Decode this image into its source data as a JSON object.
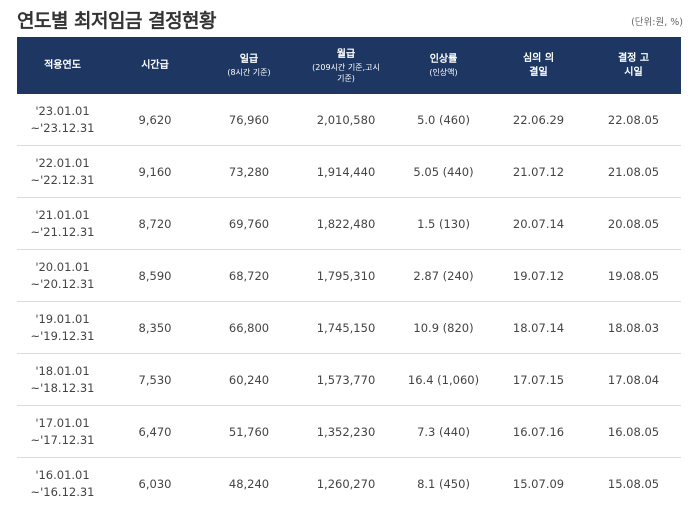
{
  "header": {
    "title": "연도별 최저임금 결정현황",
    "unit": "(단위:원, %)"
  },
  "table": {
    "columns": [
      {
        "label": "적용연도"
      },
      {
        "label": "시간급"
      },
      {
        "label": "일급",
        "sub": "(8시간 기준)"
      },
      {
        "label": "월급",
        "sub": "(209시간 기준,고시기준)"
      },
      {
        "label": "인상률",
        "sub": "(인상액)"
      },
      {
        "label": "심의 의결일"
      },
      {
        "label": "결정 고시일"
      }
    ],
    "rows": [
      {
        "from": "'23.01.01",
        "to": "~'23.12.31",
        "hourly": "9,620",
        "daily": "76,960",
        "monthly": "2,010,580",
        "rate": "5.0 (460)",
        "deliberation": "22.06.29",
        "notice": "22.08.05"
      },
      {
        "from": "'22.01.01",
        "to": "~'22.12.31",
        "hourly": "9,160",
        "daily": "73,280",
        "monthly": "1,914,440",
        "rate": "5.05 (440)",
        "deliberation": "21.07.12",
        "notice": "21.08.05"
      },
      {
        "from": "'21.01.01",
        "to": "~'21.12.31",
        "hourly": "8,720",
        "daily": "69,760",
        "monthly": "1,822,480",
        "rate": "1.5 (130)",
        "deliberation": "20.07.14",
        "notice": "20.08.05"
      },
      {
        "from": "'20.01.01",
        "to": "~'20.12.31",
        "hourly": "8,590",
        "daily": "68,720",
        "monthly": "1,795,310",
        "rate": "2.87 (240)",
        "deliberation": "19.07.12",
        "notice": "19.08.05"
      },
      {
        "from": "'19.01.01",
        "to": "~'19.12.31",
        "hourly": "8,350",
        "daily": "66,800",
        "monthly": "1,745,150",
        "rate": "10.9 (820)",
        "deliberation": "18.07.14",
        "notice": "18.08.03"
      },
      {
        "from": "'18.01.01",
        "to": "~'18.12.31",
        "hourly": "7,530",
        "daily": "60,240",
        "monthly": "1,573,770",
        "rate": "16.4 (1,060)",
        "deliberation": "17.07.15",
        "notice": "17.08.04"
      },
      {
        "from": "'17.01.01",
        "to": "~'17.12.31",
        "hourly": "6,470",
        "daily": "51,760",
        "monthly": "1,352,230",
        "rate": "7.3 (440)",
        "deliberation": "16.07.16",
        "notice": "16.08.05"
      },
      {
        "from": "'16.01.01",
        "to": "~'16.12.31",
        "hourly": "6,030",
        "daily": "48,240",
        "monthly": "1,260,270",
        "rate": "8.1 (450)",
        "deliberation": "15.07.09",
        "notice": "15.08.05"
      }
    ]
  }
}
